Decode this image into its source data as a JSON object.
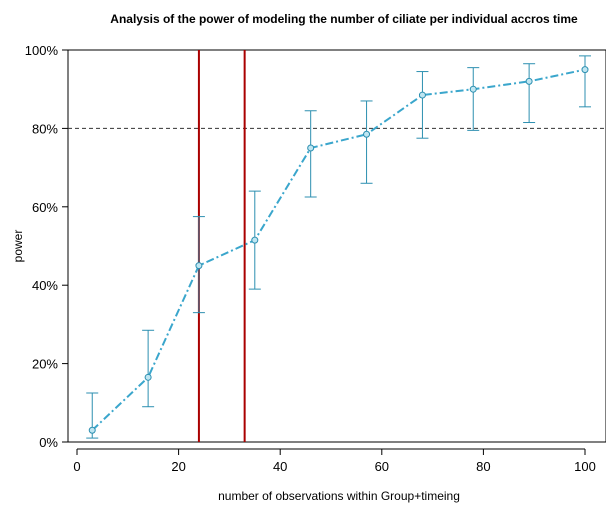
{
  "chart_data": {
    "type": "line",
    "title": "Analysis of the power of modeling the number of ciliate per individual accros time",
    "xlabel": "number of observations within Group+timeing",
    "ylabel": "power",
    "xlim": [
      -1,
      104
    ],
    "ylim": [
      0,
      1.0
    ],
    "x_ticks": [
      0,
      20,
      40,
      60,
      80,
      100
    ],
    "y_ticks": [
      0,
      0.2,
      0.4,
      0.6,
      0.8,
      1.0
    ],
    "y_tick_labels": [
      "0%",
      "20%",
      "40%",
      "60%",
      "80%",
      "100%"
    ],
    "grid": false,
    "legend": false,
    "series": [
      {
        "color": "#3aa6cc",
        "error_bar_color": "#2c8fb0",
        "line_style": "dash-dot",
        "marker": "circle",
        "x": [
          3,
          14,
          24,
          35,
          46,
          57,
          68,
          78,
          89,
          100
        ],
        "y": [
          0.03,
          0.165,
          0.45,
          0.515,
          0.75,
          0.785,
          0.885,
          0.9,
          0.92,
          0.95
        ],
        "lower": [
          0.01,
          0.09,
          0.33,
          0.39,
          0.625,
          0.66,
          0.775,
          0.795,
          0.815,
          0.855
        ],
        "upper": [
          0.125,
          0.285,
          0.575,
          0.64,
          0.845,
          0.87,
          0.945,
          0.955,
          0.965,
          0.985
        ]
      }
    ],
    "reference_line": {
      "y": 0.8,
      "style": "dashed",
      "color": "#333333"
    },
    "vertical_lines": [
      {
        "x": 24,
        "color": "#aa0000"
      },
      {
        "x": 33,
        "color": "#aa0000"
      }
    ]
  }
}
